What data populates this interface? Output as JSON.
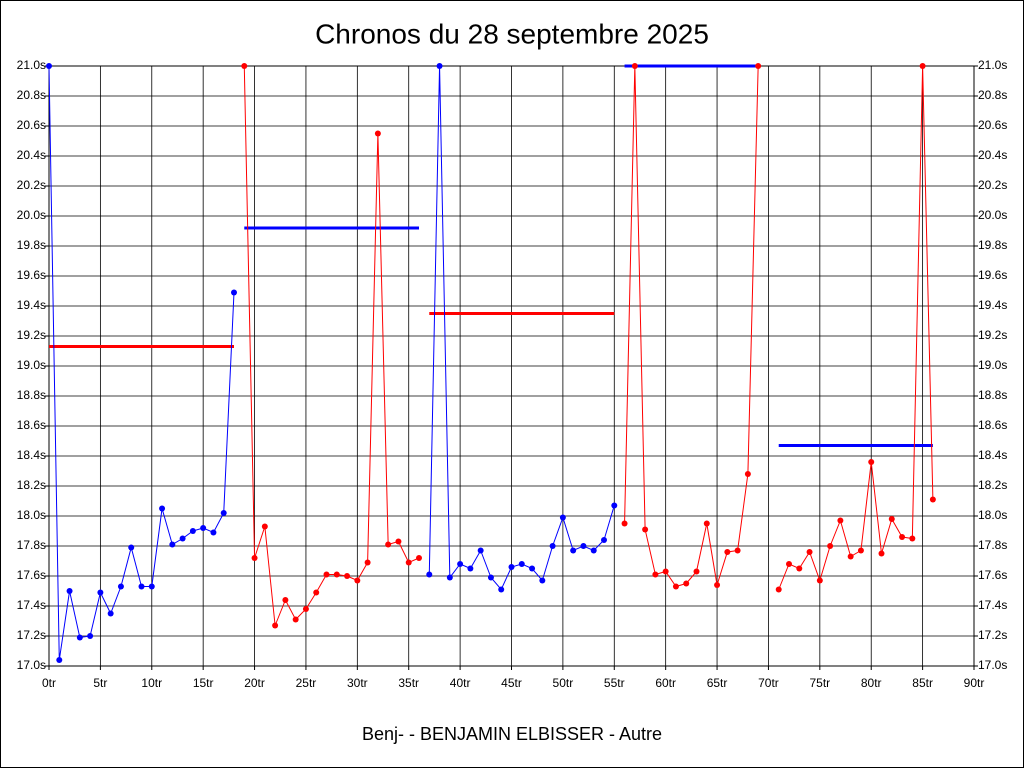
{
  "chart_data": {
    "type": "line",
    "title": "Chronos du 28 septembre 2025",
    "xlabel": "Benj- - BENJAMIN ELBISSER - Autre",
    "xlim": [
      0,
      90
    ],
    "xticks": [
      {
        "value": 0,
        "label": "0tr"
      },
      {
        "value": 5,
        "label": "5tr"
      },
      {
        "value": 10,
        "label": "10tr"
      },
      {
        "value": 15,
        "label": "15tr"
      },
      {
        "value": 20,
        "label": "20tr"
      },
      {
        "value": 25,
        "label": "25tr"
      },
      {
        "value": 30,
        "label": "30tr"
      },
      {
        "value": 35,
        "label": "35tr"
      },
      {
        "value": 40,
        "label": "40tr"
      },
      {
        "value": 45,
        "label": "45tr"
      },
      {
        "value": 50,
        "label": "50tr"
      },
      {
        "value": 55,
        "label": "55tr"
      },
      {
        "value": 60,
        "label": "60tr"
      },
      {
        "value": 65,
        "label": "65tr"
      },
      {
        "value": 70,
        "label": "70tr"
      },
      {
        "value": 75,
        "label": "75tr"
      },
      {
        "value": 80,
        "label": "80tr"
      },
      {
        "value": 85,
        "label": "85tr"
      },
      {
        "value": 90,
        "label": "90tr"
      }
    ],
    "ylim": [
      17.0,
      21.0
    ],
    "yticks": [
      {
        "value": 17.0,
        "label": "17.0s"
      },
      {
        "value": 17.2,
        "label": "17.2s"
      },
      {
        "value": 17.4,
        "label": "17.4s"
      },
      {
        "value": 17.6,
        "label": "17.6s"
      },
      {
        "value": 17.8,
        "label": "17.8s"
      },
      {
        "value": 18.0,
        "label": "18.0s"
      },
      {
        "value": 18.2,
        "label": "18.2s"
      },
      {
        "value": 18.4,
        "label": "18.4s"
      },
      {
        "value": 18.6,
        "label": "18.6s"
      },
      {
        "value": 18.8,
        "label": "18.8s"
      },
      {
        "value": 19.0,
        "label": "19.0s"
      },
      {
        "value": 19.2,
        "label": "19.2s"
      },
      {
        "value": 19.4,
        "label": "19.4s"
      },
      {
        "value": 19.6,
        "label": "19.6s"
      },
      {
        "value": 19.8,
        "label": "19.8s"
      },
      {
        "value": 20.0,
        "label": "20.0s"
      },
      {
        "value": 20.2,
        "label": "20.2s"
      },
      {
        "value": 20.4,
        "label": "20.4s"
      },
      {
        "value": 20.6,
        "label": "20.6s"
      },
      {
        "value": 20.8,
        "label": "20.8s"
      },
      {
        "value": 21.0,
        "label": "21.0s"
      }
    ],
    "grid": true,
    "series": [
      {
        "color": "#0000ff",
        "x": [
          0,
          1,
          2,
          3,
          4,
          5,
          6,
          7,
          8,
          9,
          10,
          11,
          12,
          13,
          14,
          15,
          16,
          17,
          18
        ],
        "values": [
          21.0,
          17.04,
          17.5,
          17.19,
          17.2,
          17.49,
          17.35,
          17.53,
          17.79,
          17.53,
          17.53,
          18.05,
          17.81,
          17.85,
          17.9,
          17.92,
          17.89,
          18.02,
          19.49
        ]
      },
      {
        "color": "#ff0000",
        "x": [
          19,
          20,
          21,
          22,
          23,
          24,
          25,
          26,
          27,
          28,
          29,
          30,
          31,
          32,
          33,
          34,
          35,
          36
        ],
        "values": [
          21.0,
          17.72,
          17.93,
          17.27,
          17.44,
          17.31,
          17.38,
          17.49,
          17.61,
          17.61,
          17.6,
          17.57,
          17.69,
          20.55,
          17.81,
          17.83,
          17.69,
          17.72
        ]
      },
      {
        "color": "#0000ff",
        "x": [
          37,
          38,
          39,
          40,
          41,
          42,
          43,
          44,
          45,
          46,
          47,
          48,
          49,
          50,
          51,
          52,
          53,
          54,
          55
        ],
        "values": [
          17.61,
          21.0,
          17.59,
          17.68,
          17.65,
          17.77,
          17.59,
          17.51,
          17.66,
          17.68,
          17.65,
          17.57,
          17.8,
          17.99,
          17.77,
          17.8,
          17.77,
          17.84,
          18.07
        ]
      },
      {
        "color": "#ff0000",
        "x": [
          56,
          57,
          58,
          59,
          60,
          61,
          62,
          63,
          64,
          65,
          66,
          67,
          68,
          69
        ],
        "values": [
          17.95,
          21.0,
          17.91,
          17.61,
          17.63,
          17.53,
          17.55,
          17.63,
          17.95,
          17.54,
          17.76,
          17.77,
          18.28,
          21.0
        ]
      },
      {
        "color": "#ff0000",
        "x": [
          71,
          72,
          73,
          74,
          75,
          76,
          77,
          78,
          79,
          80,
          81,
          82,
          83,
          84,
          85,
          86
        ],
        "values": [
          17.51,
          17.68,
          17.65,
          17.76,
          17.57,
          17.8,
          17.97,
          17.73,
          17.77,
          18.36,
          17.75,
          17.98,
          17.86,
          17.85,
          21.0,
          18.11
        ]
      }
    ],
    "reference_lines": [
      {
        "color": "#ff0000",
        "x": [
          0,
          18
        ],
        "value": 19.13
      },
      {
        "color": "#0000ff",
        "x": [
          19,
          36
        ],
        "value": 19.92
      },
      {
        "color": "#ff0000",
        "x": [
          37,
          55
        ],
        "value": 19.35
      },
      {
        "color": "#0000ff",
        "x": [
          56,
          69
        ],
        "value": 21.0
      },
      {
        "color": "#0000ff",
        "x": [
          71,
          86
        ],
        "value": 18.47
      }
    ]
  }
}
